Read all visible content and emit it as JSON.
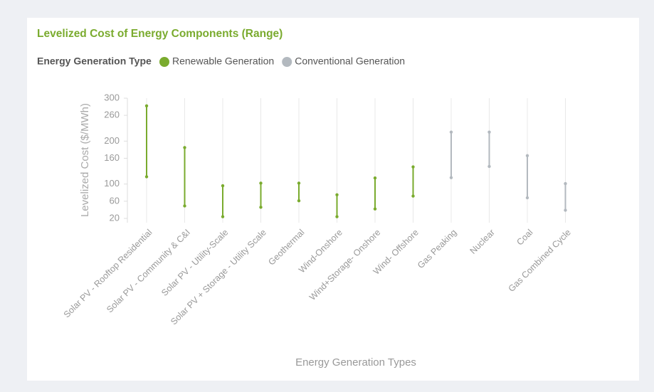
{
  "chart_data": {
    "type": "range",
    "title": "Levelized Cost of Energy Components (Range)",
    "legend_title": "Energy Generation Type",
    "x_label": "Energy Generation Types",
    "y_label": "Levelized Cost ($/MWh)",
    "categories": [
      "Solar PV - Rooftop Residential",
      "Solar PV - Community & C&I",
      "Solar PV - Utility-Scale",
      "Solar PV + Storage - Utility Scale",
      "Geothermal",
      "Wind-Onshore",
      "Wind+Storage- Onshore",
      "Wind- Offshore",
      "Gas Peaking",
      "Nuclear",
      "Coal",
      "Gas Combined Cycle"
    ],
    "series": [
      {
        "name": "Renewable Generation",
        "color": "#7aab2e",
        "low": [
          117,
          49,
          24,
          46,
          61,
          24,
          42,
          72,
          null,
          null,
          null,
          null
        ],
        "high": [
          282,
          185,
          96,
          102,
          102,
          75,
          114,
          140,
          null,
          null,
          null,
          null
        ]
      },
      {
        "name": "Conventional Generation",
        "color": "#b3b9bf",
        "low": [
          null,
          null,
          null,
          null,
          null,
          null,
          null,
          null,
          115,
          141,
          68,
          39
        ],
        "high": [
          null,
          null,
          null,
          null,
          null,
          null,
          null,
          null,
          221,
          221,
          166,
          101
        ]
      }
    ],
    "ylim": [
      10,
      300
    ],
    "yticks": [
      20,
      60,
      100,
      160,
      200,
      260,
      300
    ],
    "grid": true
  }
}
